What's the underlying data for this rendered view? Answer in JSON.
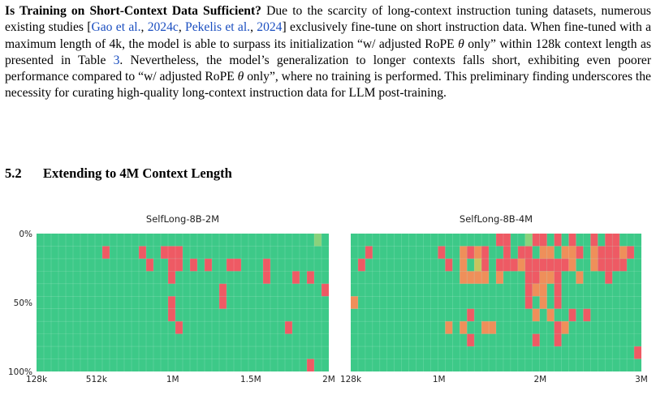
{
  "paragraph": {
    "lead": "Is Training on Short-Context Data Sufficient?",
    "t1": " Due to the scarcity of long-context instruction tuning datasets, numerous existing studies [",
    "c1": "Gao et al.",
    "t2": ", ",
    "c2": "2024c",
    "t3": ", ",
    "c3": "Pekelis et al.",
    "t4": ", ",
    "c4": "2024",
    "t5": "] exclusively fine-tune on short instruction data. When fine-tuned with a maximum length of 4k, the model is able to surpass its initialization “w/ adjusted RoPE ",
    "theta1": "θ",
    "t6": " only” within 128k context length as presented in Table ",
    "c5": "3",
    "t7": ". Nevertheless, the model’s generalization to longer contexts falls short, exhibiting even poorer performance compared to “w/ adjusted RoPE ",
    "theta2": "θ",
    "t8": " only”, where no training is performed. This preliminary finding underscores the necessity for curating high-quality long-context instruction data for LLM post-training."
  },
  "section": {
    "number": "5.2",
    "title": "Extending to 4M Context Length"
  },
  "colors": {
    "green": "#3dc988",
    "red": "#ee5a64",
    "orange": "#ef8f5a",
    "yellow": "#c7c45e",
    "lightgreen": "#89d27c",
    "link": "#1a4ec0"
  },
  "chart_data": [
    {
      "type": "heatmap",
      "title": "SelfLong-8B-2M",
      "ylabel_ticks": [
        "0%",
        "50%",
        "100%"
      ],
      "xlabel_ticks": [
        "128k",
        "512k",
        "1M",
        "1.5M",
        "2M"
      ],
      "x_tick_values": [
        128,
        512,
        1000,
        1500,
        2000
      ],
      "x_range": [
        128,
        2000
      ],
      "y_range": [
        0,
        100
      ],
      "rows": 11,
      "cols": 40,
      "cells": [
        {
          "row": 1,
          "col": 9,
          "v": "red"
        },
        {
          "row": 1,
          "col": 14,
          "v": "red"
        },
        {
          "row": 1,
          "col": 17,
          "v": "red"
        },
        {
          "row": 1,
          "col": 18,
          "v": "red"
        },
        {
          "row": 1,
          "col": 19,
          "v": "red"
        },
        {
          "row": 2,
          "col": 15,
          "v": "red"
        },
        {
          "row": 2,
          "col": 18,
          "v": "red"
        },
        {
          "row": 2,
          "col": 19,
          "v": "red"
        },
        {
          "row": 2,
          "col": 21,
          "v": "red"
        },
        {
          "row": 2,
          "col": 23,
          "v": "red"
        },
        {
          "row": 2,
          "col": 26,
          "v": "red"
        },
        {
          "row": 2,
          "col": 27,
          "v": "red"
        },
        {
          "row": 2,
          "col": 31,
          "v": "red"
        },
        {
          "row": 3,
          "col": 18,
          "v": "red"
        },
        {
          "row": 3,
          "col": 31,
          "v": "red"
        },
        {
          "row": 3,
          "col": 35,
          "v": "red"
        },
        {
          "row": 3,
          "col": 37,
          "v": "red"
        },
        {
          "row": 4,
          "col": 25,
          "v": "red"
        },
        {
          "row": 4,
          "col": 39,
          "v": "red"
        },
        {
          "row": 5,
          "col": 18,
          "v": "red"
        },
        {
          "row": 5,
          "col": 25,
          "v": "red"
        },
        {
          "row": 6,
          "col": 18,
          "v": "red"
        },
        {
          "row": 7,
          "col": 19,
          "v": "red"
        },
        {
          "row": 7,
          "col": 34,
          "v": "red"
        },
        {
          "row": 10,
          "col": 37,
          "v": "red"
        },
        {
          "row": 0,
          "col": 38,
          "v": "lightgreen"
        }
      ]
    },
    {
      "type": "heatmap",
      "title": "SelfLong-8B-4M",
      "ylabel_ticks": [],
      "xlabel_ticks": [
        "128k",
        "1M",
        "2M",
        "3M"
      ],
      "x_tick_values": [
        128,
        1000,
        2000,
        3000
      ],
      "x_range": [
        128,
        3000
      ],
      "y_range": [
        0,
        100
      ],
      "rows": 11,
      "cols": 40,
      "cells": [
        {
          "row": 0,
          "col": 20,
          "v": "red"
        },
        {
          "row": 0,
          "col": 21,
          "v": "red"
        },
        {
          "row": 0,
          "col": 24,
          "v": "lightgreen"
        },
        {
          "row": 0,
          "col": 25,
          "v": "red"
        },
        {
          "row": 0,
          "col": 26,
          "v": "red"
        },
        {
          "row": 0,
          "col": 28,
          "v": "red"
        },
        {
          "row": 0,
          "col": 30,
          "v": "red"
        },
        {
          "row": 0,
          "col": 33,
          "v": "red"
        },
        {
          "row": 0,
          "col": 35,
          "v": "red"
        },
        {
          "row": 0,
          "col": 36,
          "v": "red"
        },
        {
          "row": 1,
          "col": 2,
          "v": "red"
        },
        {
          "row": 1,
          "col": 12,
          "v": "red"
        },
        {
          "row": 1,
          "col": 15,
          "v": "orange"
        },
        {
          "row": 1,
          "col": 16,
          "v": "red"
        },
        {
          "row": 1,
          "col": 17,
          "v": "orange"
        },
        {
          "row": 1,
          "col": 18,
          "v": "red"
        },
        {
          "row": 1,
          "col": 21,
          "v": "red"
        },
        {
          "row": 1,
          "col": 23,
          "v": "red"
        },
        {
          "row": 1,
          "col": 24,
          "v": "red"
        },
        {
          "row": 1,
          "col": 26,
          "v": "orange"
        },
        {
          "row": 1,
          "col": 27,
          "v": "orange"
        },
        {
          "row": 1,
          "col": 29,
          "v": "orange"
        },
        {
          "row": 1,
          "col": 30,
          "v": "orange"
        },
        {
          "row": 1,
          "col": 31,
          "v": "red"
        },
        {
          "row": 1,
          "col": 33,
          "v": "orange"
        },
        {
          "row": 1,
          "col": 34,
          "v": "red"
        },
        {
          "row": 1,
          "col": 35,
          "v": "red"
        },
        {
          "row": 1,
          "col": 36,
          "v": "red"
        },
        {
          "row": 1,
          "col": 37,
          "v": "orange"
        },
        {
          "row": 1,
          "col": 38,
          "v": "red"
        },
        {
          "row": 2,
          "col": 1,
          "v": "red"
        },
        {
          "row": 2,
          "col": 13,
          "v": "red"
        },
        {
          "row": 2,
          "col": 15,
          "v": "orange"
        },
        {
          "row": 2,
          "col": 17,
          "v": "yellow"
        },
        {
          "row": 2,
          "col": 18,
          "v": "red"
        },
        {
          "row": 2,
          "col": 20,
          "v": "red"
        },
        {
          "row": 2,
          "col": 21,
          "v": "red"
        },
        {
          "row": 2,
          "col": 22,
          "v": "red"
        },
        {
          "row": 2,
          "col": 23,
          "v": "orange"
        },
        {
          "row": 2,
          "col": 24,
          "v": "red"
        },
        {
          "row": 2,
          "col": 25,
          "v": "red"
        },
        {
          "row": 2,
          "col": 26,
          "v": "red"
        },
        {
          "row": 2,
          "col": 27,
          "v": "red"
        },
        {
          "row": 2,
          "col": 28,
          "v": "red"
        },
        {
          "row": 2,
          "col": 29,
          "v": "red"
        },
        {
          "row": 2,
          "col": 30,
          "v": "orange"
        },
        {
          "row": 2,
          "col": 33,
          "v": "orange"
        },
        {
          "row": 2,
          "col": 34,
          "v": "red"
        },
        {
          "row": 2,
          "col": 35,
          "v": "red"
        },
        {
          "row": 2,
          "col": 36,
          "v": "red"
        },
        {
          "row": 2,
          "col": 37,
          "v": "red"
        },
        {
          "row": 3,
          "col": 15,
          "v": "orange"
        },
        {
          "row": 3,
          "col": 16,
          "v": "orange"
        },
        {
          "row": 3,
          "col": 17,
          "v": "orange"
        },
        {
          "row": 3,
          "col": 18,
          "v": "orange"
        },
        {
          "row": 3,
          "col": 20,
          "v": "orange"
        },
        {
          "row": 3,
          "col": 24,
          "v": "red"
        },
        {
          "row": 3,
          "col": 25,
          "v": "red"
        },
        {
          "row": 3,
          "col": 26,
          "v": "orange"
        },
        {
          "row": 3,
          "col": 27,
          "v": "orange"
        },
        {
          "row": 3,
          "col": 28,
          "v": "red"
        },
        {
          "row": 3,
          "col": 31,
          "v": "orange"
        },
        {
          "row": 3,
          "col": 35,
          "v": "red"
        },
        {
          "row": 4,
          "col": 24,
          "v": "red"
        },
        {
          "row": 4,
          "col": 25,
          "v": "orange"
        },
        {
          "row": 4,
          "col": 26,
          "v": "orange"
        },
        {
          "row": 4,
          "col": 28,
          "v": "red"
        },
        {
          "row": 5,
          "col": 0,
          "v": "orange"
        },
        {
          "row": 5,
          "col": 24,
          "v": "red"
        },
        {
          "row": 5,
          "col": 26,
          "v": "orange"
        },
        {
          "row": 5,
          "col": 28,
          "v": "red"
        },
        {
          "row": 6,
          "col": 16,
          "v": "red"
        },
        {
          "row": 6,
          "col": 25,
          "v": "orange"
        },
        {
          "row": 6,
          "col": 27,
          "v": "orange"
        },
        {
          "row": 6,
          "col": 30,
          "v": "red"
        },
        {
          "row": 6,
          "col": 32,
          "v": "red"
        },
        {
          "row": 7,
          "col": 13,
          "v": "orange"
        },
        {
          "row": 7,
          "col": 15,
          "v": "orange"
        },
        {
          "row": 7,
          "col": 18,
          "v": "orange"
        },
        {
          "row": 7,
          "col": 19,
          "v": "orange"
        },
        {
          "row": 7,
          "col": 28,
          "v": "red"
        },
        {
          "row": 7,
          "col": 29,
          "v": "orange"
        },
        {
          "row": 8,
          "col": 16,
          "v": "red"
        },
        {
          "row": 8,
          "col": 25,
          "v": "red"
        },
        {
          "row": 8,
          "col": 28,
          "v": "red"
        },
        {
          "row": 9,
          "col": 39,
          "v": "red"
        }
      ]
    }
  ]
}
